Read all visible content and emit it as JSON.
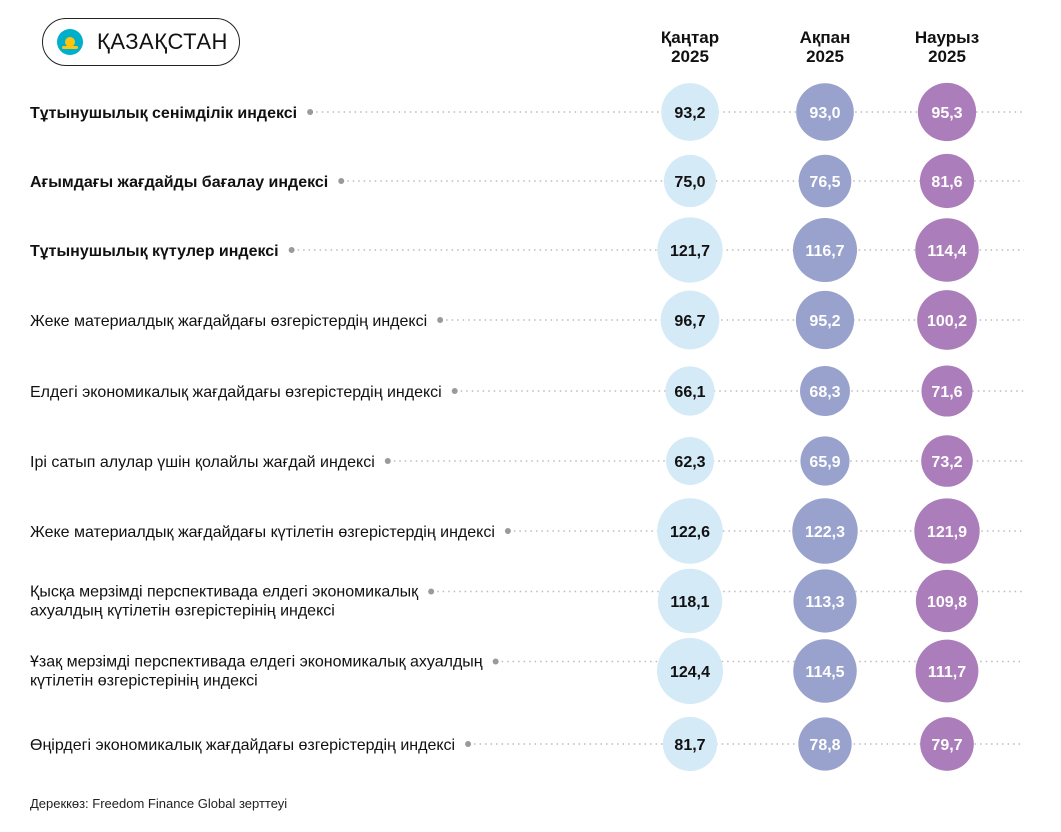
{
  "country": {
    "name": "ҚАЗАҚСТАН",
    "flag_icon": "kazakhstan-flag-icon"
  },
  "columns": [
    {
      "month": "Қаңтар",
      "year": "2025"
    },
    {
      "month": "Ақпан",
      "year": "2025"
    },
    {
      "month": "Наурыз",
      "year": "2025"
    }
  ],
  "colors": {
    "jan": "#D4EAF7",
    "feb": "#98A2CD",
    "mar": "#AB7DBB",
    "dots": "#BBBBBB"
  },
  "chart_data": {
    "type": "table",
    "categories": [
      [
        "Тұтынушылық сенімділік индексі"
      ],
      [
        "Ағымдағы жағдайды бағалау индексі"
      ],
      [
        "Тұтынушылық күтулер индексі"
      ],
      [
        "Жеке материалдық жағдайдағы өзгерістердің индексі"
      ],
      [
        "Елдегі экономикалық жағдайдағы өзгерістердің индексі"
      ],
      [
        "Ірі сатып алулар үшін қолайлы жағдай индексі"
      ],
      [
        "Жеке материалдық жағдайдағы күтілетін өзгерістердің индексі"
      ],
      [
        "Қысқа мерзімді перспективада елдегі экономикалық",
        "ахуалдың күтілетін өзгерістерінің индексі"
      ],
      [
        "Ұзақ мерзімді перспективада елдегі экономикалық ахуалдың",
        "күтілетін өзгерістерінің индексі"
      ],
      [
        "Өңірдегі экономикалық жағдайдағы өзгерістердің индексі"
      ]
    ],
    "bold_rows": [
      0,
      1,
      2
    ],
    "series": [
      {
        "name": "Қаңтар 2025",
        "values": [
          93.2,
          75.0,
          121.7,
          96.7,
          66.1,
          62.3,
          122.6,
          118.1,
          124.4,
          81.7
        ]
      },
      {
        "name": "Ақпан 2025",
        "values": [
          93.0,
          76.5,
          116.7,
          95.2,
          68.3,
          65.9,
          122.3,
          113.3,
          114.5,
          78.8
        ]
      },
      {
        "name": "Наурыз 2025",
        "values": [
          95.3,
          81.6,
          114.4,
          100.2,
          71.6,
          73.2,
          121.9,
          109.8,
          111.7,
          79.7
        ]
      }
    ],
    "decimal_separator": ","
  },
  "source": "Дереккөз: Freedom Finance Global зерттеуі"
}
